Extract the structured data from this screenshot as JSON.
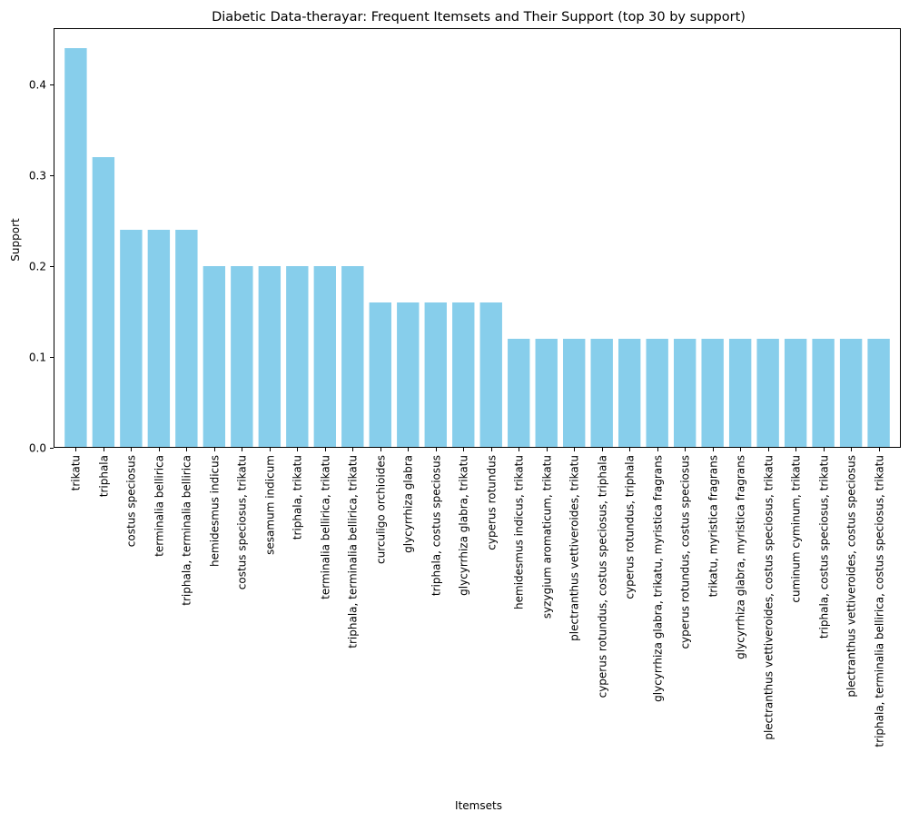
{
  "chart_data": {
    "type": "bar",
    "title": "Diabetic Data-therayar: Frequent Itemsets and Their Support (top 30 by support)",
    "xlabel": "Itemsets",
    "ylabel": "Support",
    "ylim": [
      0,
      0.462
    ],
    "yticks": [
      0.0,
      0.1,
      0.2,
      0.3,
      0.4
    ],
    "ytick_labels": [
      "0.0",
      "0.1",
      "0.2",
      "0.3",
      "0.4"
    ],
    "grid": false,
    "bar_color": "#87ceeb",
    "categories": [
      "trikatu",
      "triphala",
      "costus speciosus",
      "terminalia bellirica",
      "triphala, terminalia bellirica",
      "hemidesmus indicus",
      "costus speciosus, trikatu",
      "sesamum indicum",
      "triphala, trikatu",
      "terminalia bellirica, trikatu",
      "triphala, terminalia bellirica, trikatu",
      "curculigo orchioides",
      "glycyrrhiza glabra",
      "triphala, costus speciosus",
      "glycyrrhiza glabra, trikatu",
      "cyperus rotundus",
      "hemidesmus indicus, trikatu",
      "syzygium aromaticum, trikatu",
      "plectranthus vettiveroides, trikatu",
      "cyperus rotundus, costus speciosus, triphala",
      "cyperus rotundus, triphala",
      "glycyrrhiza glabra, trikatu, myristica fragrans",
      "cyperus rotundus, costus speciosus",
      "trikatu, myristica fragrans",
      "glycyrrhiza glabra, myristica fragrans",
      "plectranthus vettiveroides, costus speciosus, trikatu",
      "cuminum cyminum, trikatu",
      "triphala, costus speciosus, trikatu",
      "plectranthus vettiveroides, costus speciosus",
      "triphala, terminalia bellirica, costus speciosus, trikatu"
    ],
    "values": [
      0.44,
      0.32,
      0.24,
      0.24,
      0.24,
      0.2,
      0.2,
      0.2,
      0.2,
      0.2,
      0.2,
      0.16,
      0.16,
      0.16,
      0.16,
      0.16,
      0.12,
      0.12,
      0.12,
      0.12,
      0.12,
      0.12,
      0.12,
      0.12,
      0.12,
      0.12,
      0.12,
      0.12,
      0.12,
      0.12
    ]
  }
}
